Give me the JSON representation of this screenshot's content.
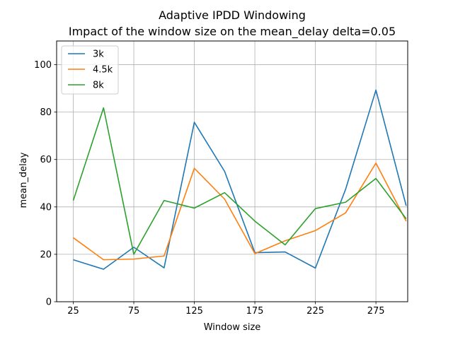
{
  "chart_data": {
    "type": "line",
    "title": "Adaptive IPDD Windowing",
    "subtitle": "Impact of the window size on the mean_delay delta=0.05",
    "xlabel": "Window size",
    "ylabel": "mean_delay",
    "xlim": [
      11.25,
      301.25
    ],
    "ylim": [
      0,
      110
    ],
    "xticks": [
      25,
      75,
      125,
      175,
      225,
      275
    ],
    "yticks": [
      0,
      20,
      40,
      60,
      80,
      100
    ],
    "grid": true,
    "legend_position": "top-left",
    "x": [
      25,
      50,
      75,
      100,
      125,
      150,
      175,
      200,
      225,
      250,
      275,
      300
    ],
    "series": [
      {
        "name": "3k",
        "color": "#1f77b4",
        "values": [
          17.7,
          13.7,
          23.0,
          14.3,
          75.7,
          55.0,
          20.7,
          21.0,
          14.2,
          47.5,
          89.3,
          40.5
        ]
      },
      {
        "name": "4.5k",
        "color": "#ff7f0e",
        "values": [
          27.0,
          17.7,
          18.0,
          19.3,
          56.3,
          43.3,
          20.3,
          25.7,
          30.0,
          37.5,
          58.5,
          34.0
        ]
      },
      {
        "name": "8k",
        "color": "#2ca02c",
        "values": [
          42.7,
          81.8,
          20.0,
          42.7,
          39.5,
          46.0,
          34.0,
          24.0,
          39.3,
          42.0,
          52.0,
          35.0
        ]
      }
    ]
  }
}
